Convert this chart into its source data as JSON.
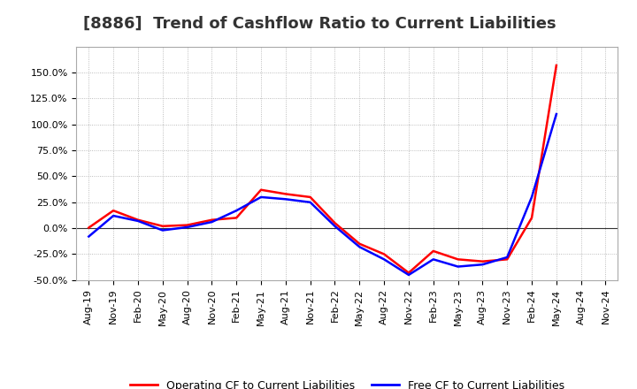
{
  "title": "[8886]  Trend of Cashflow Ratio to Current Liabilities",
  "x_labels": [
    "Aug-19",
    "Nov-19",
    "Feb-20",
    "May-20",
    "Aug-20",
    "Nov-20",
    "Feb-21",
    "May-21",
    "Aug-21",
    "Nov-21",
    "Feb-22",
    "May-22",
    "Aug-22",
    "Nov-22",
    "Feb-23",
    "May-23",
    "Aug-23",
    "Nov-23",
    "Feb-24",
    "May-24",
    "Aug-24",
    "Nov-24"
  ],
  "operating_cf": [
    0.5,
    17.0,
    8.0,
    2.0,
    3.0,
    8.0,
    10.0,
    37.0,
    33.0,
    30.0,
    5.0,
    -15.0,
    -25.0,
    -43.0,
    -22.0,
    -30.0,
    -32.0,
    -30.0,
    10.0,
    157.0,
    null,
    null
  ],
  "free_cf": [
    -8.0,
    12.0,
    7.0,
    -2.0,
    1.0,
    6.0,
    17.0,
    30.0,
    28.0,
    25.0,
    2.0,
    -18.0,
    -30.0,
    -45.0,
    -30.0,
    -37.0,
    -35.0,
    -28.0,
    30.0,
    110.0,
    null,
    null
  ],
  "ylim": [
    -50,
    175
  ],
  "yticks": [
    -50,
    -25,
    0,
    25,
    50,
    75,
    100,
    125,
    150
  ],
  "operating_color": "#ff0000",
  "free_color": "#0000ff",
  "background_color": "#ffffff",
  "grid_color": "#aaaaaa",
  "legend_op": "Operating CF to Current Liabilities",
  "legend_free": "Free CF to Current Liabilities",
  "title_fontsize": 13,
  "tick_fontsize": 8
}
